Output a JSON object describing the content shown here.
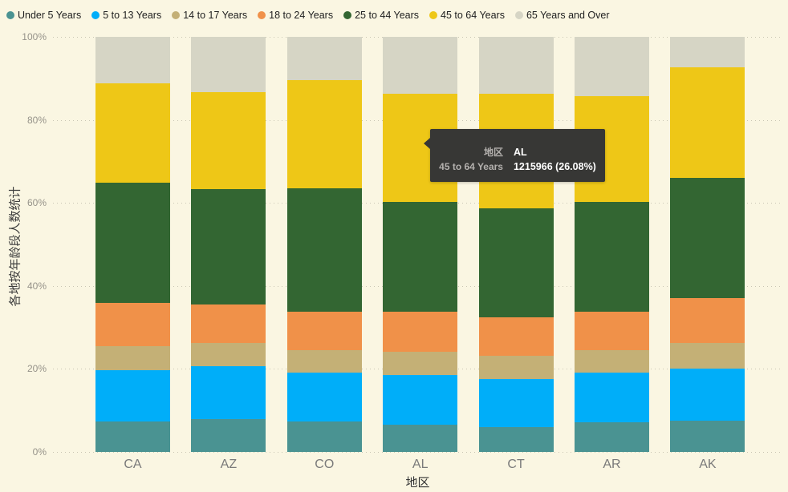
{
  "colors": {
    "background": "#faf6e2",
    "gridline": "#c9c6b4",
    "axis_tick_text": "#96938a",
    "category_text": "#7a7a7a",
    "axis_title_text": "#3d3d3d",
    "legend_text": "#212121",
    "tooltip_bg": "#373735",
    "tooltip_label": "#b4b1ae",
    "tooltip_value": "#ffffff"
  },
  "tooltip": {
    "rows": [
      {
        "label": "地区",
        "value": "AL"
      },
      {
        "label": "45 to 64 Years",
        "value": "1215966 (26.08%)"
      }
    ]
  },
  "chart_data": {
    "type": "bar",
    "variant": "stacked-100-percent",
    "title": "",
    "xlabel": "地区",
    "ylabel": "各地按年龄段人数统计",
    "categories": [
      "CA",
      "AZ",
      "CO",
      "AL",
      "CT",
      "AR",
      "AK"
    ],
    "ylim": [
      0,
      100
    ],
    "y_ticks": [
      {
        "value": 0,
        "label": "0%"
      },
      {
        "value": 20,
        "label": "20%"
      },
      {
        "value": 40,
        "label": "40%"
      },
      {
        "value": 60,
        "label": "60%"
      },
      {
        "value": 80,
        "label": "80%"
      },
      {
        "value": 100,
        "label": "100%"
      }
    ],
    "grid": "horizontal-dotted",
    "legend_position": "top-left",
    "series": [
      {
        "name": "Under 5 Years",
        "color": "#4a9392",
        "values": [
          2704659,
          515910,
          358280,
          310504,
          211637,
          202070,
          52083
        ]
      },
      {
        "name": "5 to 13 Years",
        "color": "#00aef9",
        "values": [
          4499890,
          828669,
          587154,
          552339,
          403658,
          343207,
          85640
        ]
      },
      {
        "name": "14 to 17 Years",
        "color": "#c4b076",
        "values": [
          2159981,
          362642,
          261701,
          259034,
          196918,
          157204,
          42153
        ]
      },
      {
        "name": "18 to 24 Years",
        "color": "#f09149",
        "values": [
          3853788,
          601943,
          466194,
          450818,
          325110,
          264160,
          74257
        ]
      },
      {
        "name": "25 to 44 Years",
        "color": "#336632",
        "values": [
          10604510,
          1804762,
          1464939,
          1231572,
          916955,
          754420,
          198724
        ]
      },
      {
        "name": "45 to 64 Years",
        "color": "#eec717",
        "values": [
          8819342,
          1523681,
          1290094,
          1215966,
          968967,
          727124,
          183159
        ]
      },
      {
        "name": "65 Years and Over",
        "color": "#d6d5c5",
        "values": [
          4114496,
          862573,
          511094,
          641667,
          478007,
          407205,
          50277
        ]
      }
    ]
  }
}
